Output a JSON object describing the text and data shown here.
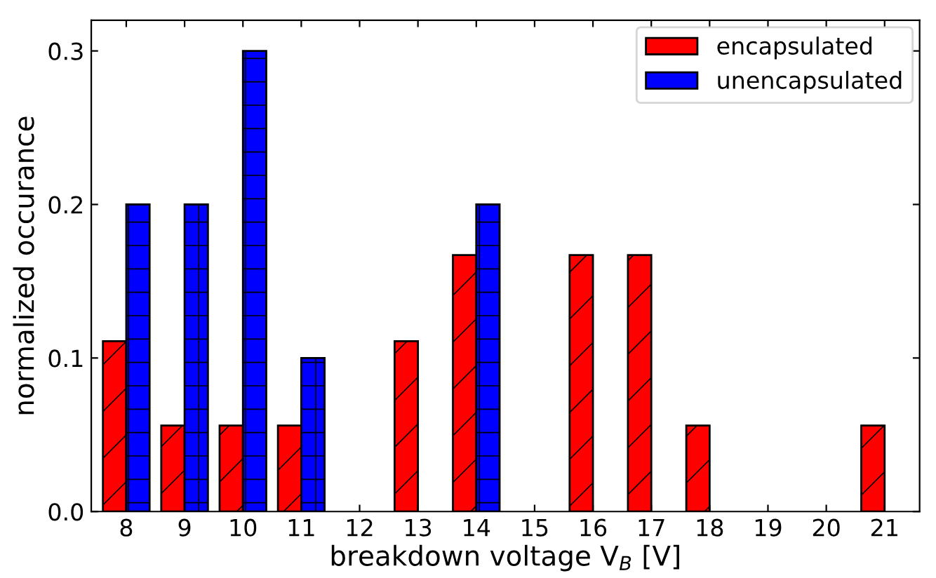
{
  "chart_data": {
    "type": "bar",
    "xlabel": "breakdown voltage V$_{B}$ [V]",
    "ylabel": "normalized occurance",
    "categories": [
      "8",
      "9",
      "10",
      "11",
      "12",
      "13",
      "14",
      "15",
      "16",
      "17",
      "18",
      "19",
      "20",
      "21"
    ],
    "series": [
      {
        "name": "encapsulated",
        "color": "#ff0000",
        "values": [
          0.111,
          0.056,
          0.056,
          0.056,
          0,
          0.111,
          0.167,
          0,
          0.167,
          0.167,
          0.056,
          0,
          0,
          0.056
        ]
      },
      {
        "name": "unencapsulated",
        "color": "#0000ff",
        "values": [
          0.2,
          0.2,
          0.3,
          0.1,
          0,
          0,
          0.2,
          0,
          0,
          0,
          0,
          0,
          0,
          0
        ]
      }
    ],
    "ylim": [
      0,
      0.32
    ],
    "yticks": [
      {
        "value": 0,
        "label": "0.0"
      },
      0.1,
      0.2,
      0.3
    ],
    "grid": false,
    "legend": "top right"
  }
}
